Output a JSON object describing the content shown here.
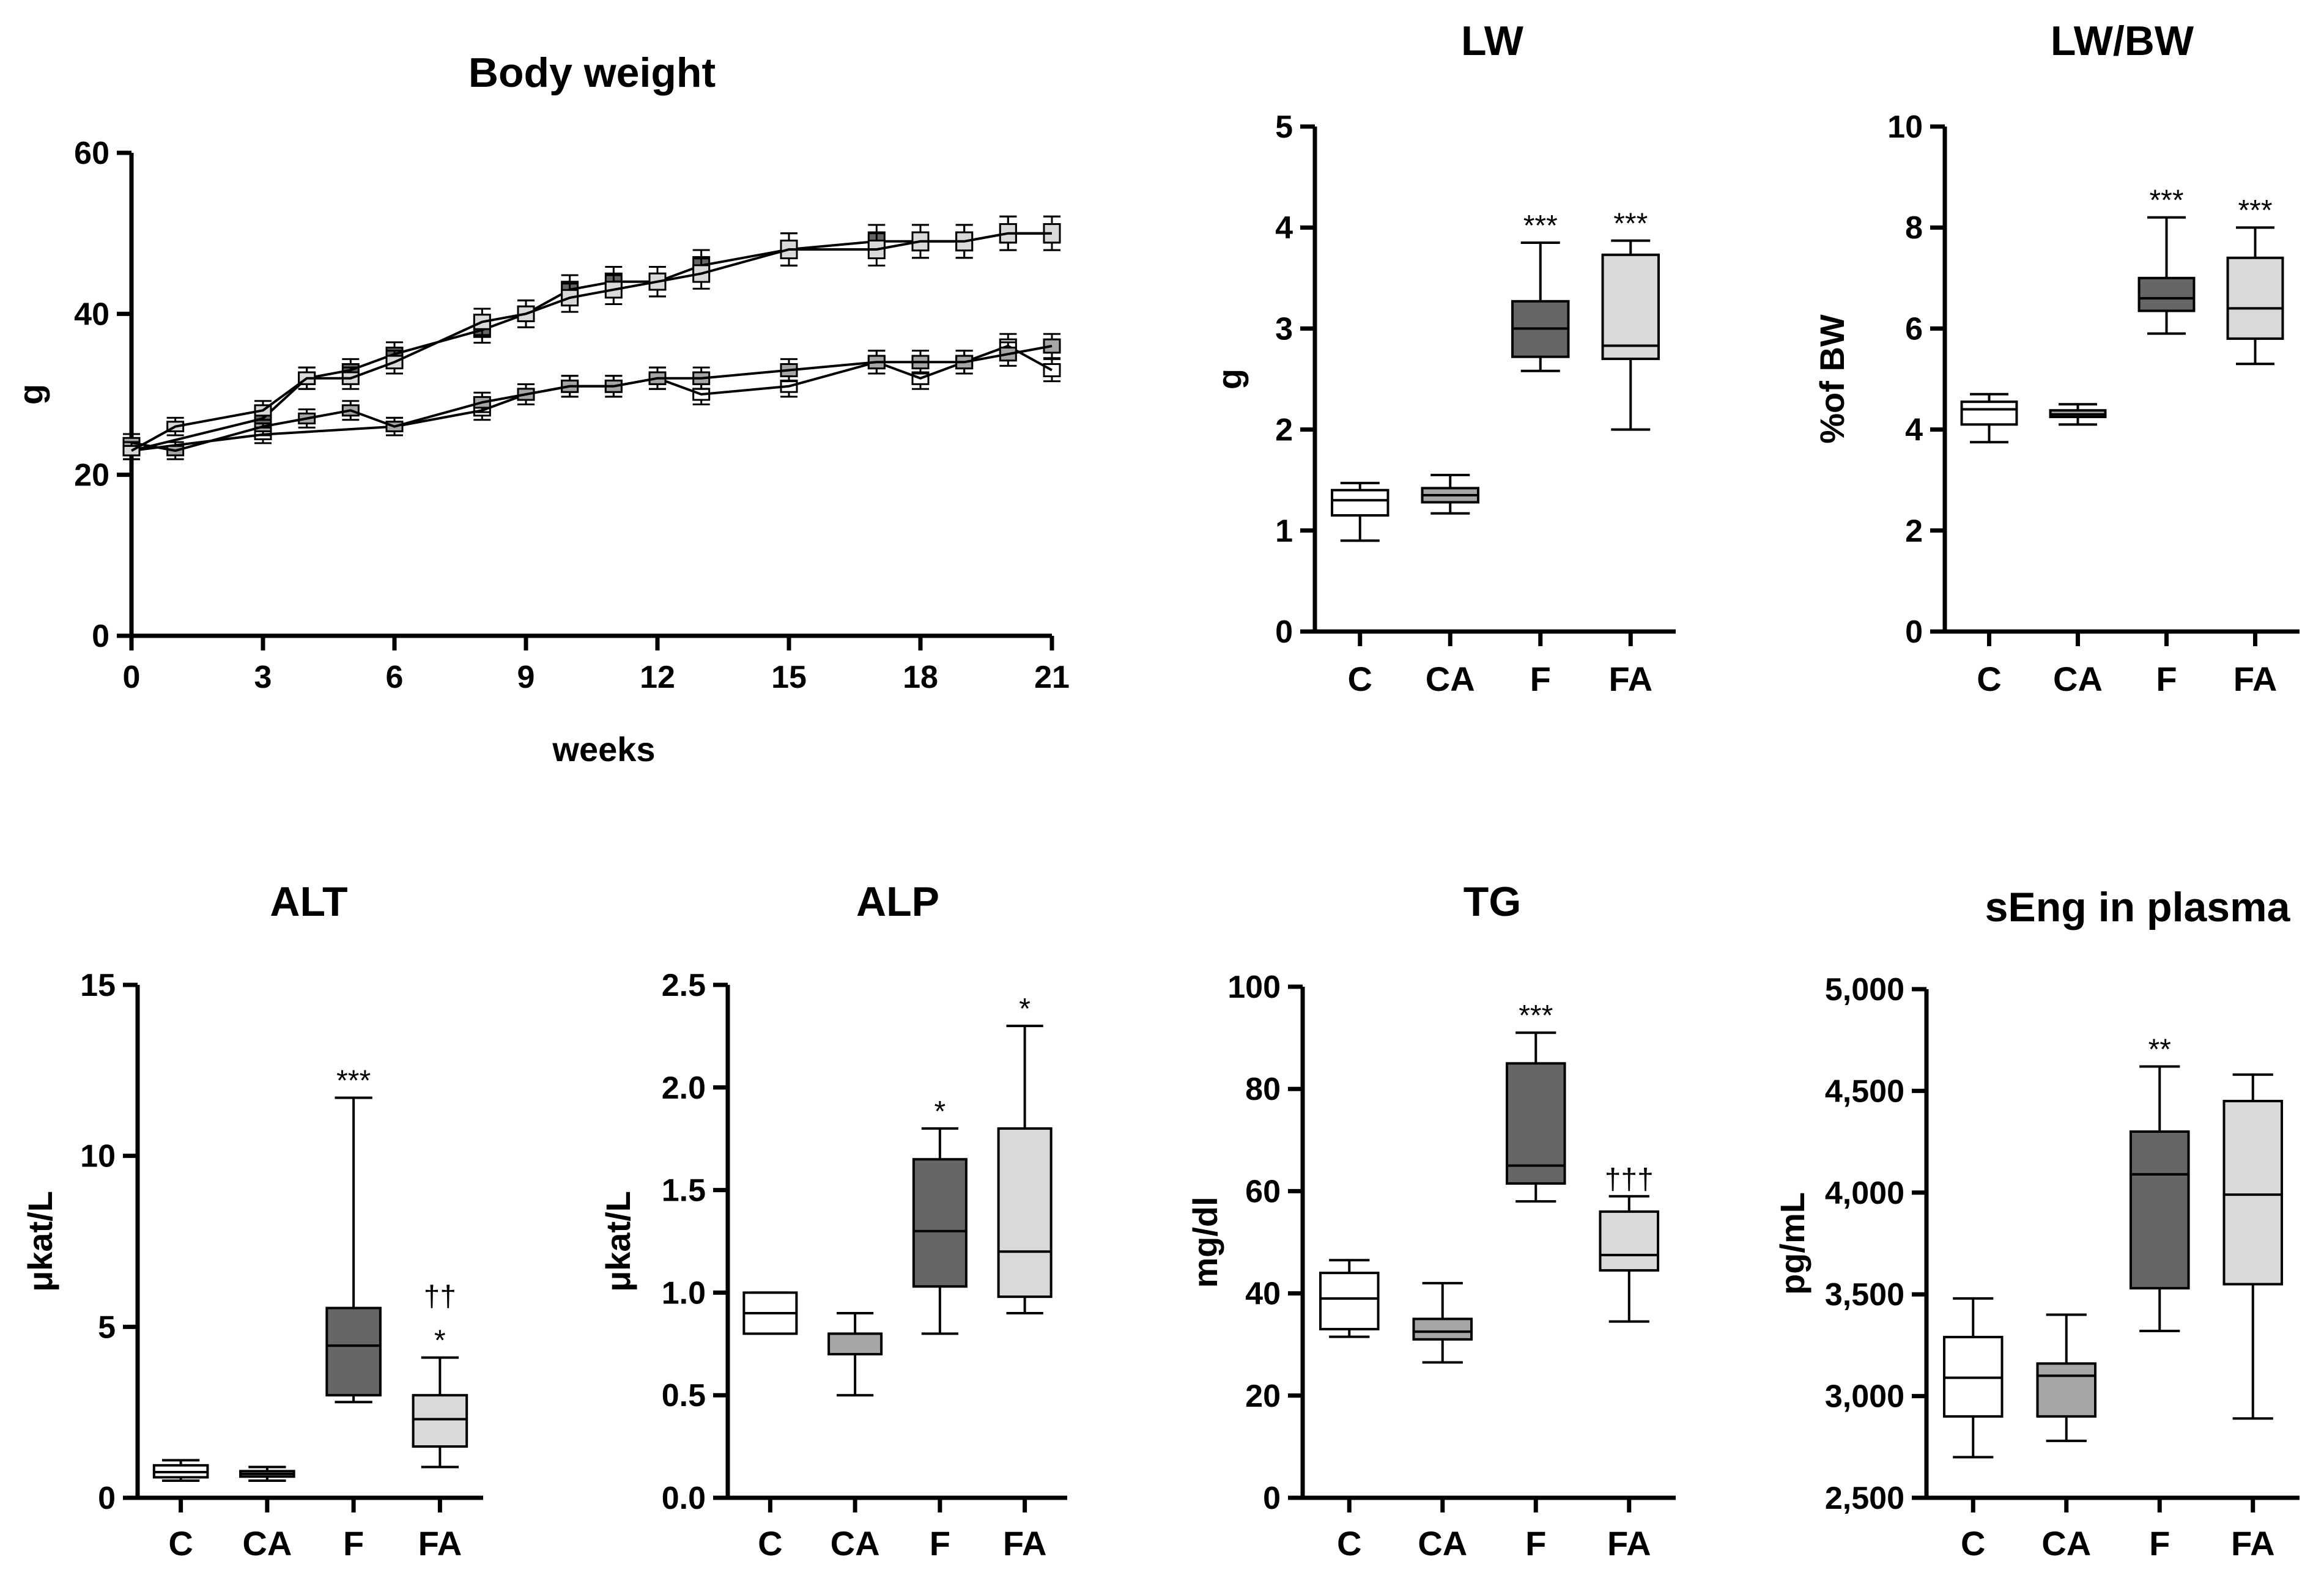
{
  "colors": {
    "C": "#ffffff",
    "CA": "#a6a6a6",
    "F": "#666666",
    "FA": "#d9d9d9",
    "axis": "#000000"
  },
  "chart_data": [
    {
      "id": "body-weight",
      "type": "line",
      "title": "Body weight",
      "xlabel": "weeks",
      "ylabel": "g",
      "xlim": [
        0,
        21
      ],
      "ylim": [
        0,
        60
      ],
      "x_ticks": [
        0,
        3,
        6,
        9,
        12,
        15,
        18,
        21
      ],
      "y_ticks": [
        0,
        20,
        40,
        60
      ],
      "series": [
        {
          "name": "C",
          "x": [
            0,
            3,
            6,
            8,
            9,
            10,
            11,
            12,
            13,
            15,
            17,
            18,
            19,
            20,
            21
          ],
          "values": [
            23,
            25,
            26,
            28,
            30,
            31,
            31,
            32,
            30,
            31,
            34,
            32,
            34,
            36,
            33
          ]
        },
        {
          "name": "CA",
          "x": [
            0,
            1,
            3,
            4,
            5,
            6,
            8,
            9,
            10,
            11,
            12,
            13,
            15,
            17,
            18,
            19,
            20,
            21
          ],
          "values": [
            24,
            23,
            26,
            27,
            28,
            26,
            29,
            30,
            31,
            31,
            32,
            32,
            33,
            34,
            34,
            34,
            35,
            36
          ]
        },
        {
          "name": "F",
          "x": [
            0,
            3,
            4,
            5,
            6,
            8,
            9,
            10,
            11,
            12,
            13,
            15,
            17,
            18,
            19,
            20,
            21
          ],
          "values": [
            23,
            27,
            32,
            33,
            35,
            38,
            40,
            43,
            44,
            44,
            46,
            48,
            49,
            49,
            49,
            50,
            50
          ]
        },
        {
          "name": "FA",
          "x": [
            0,
            1,
            3,
            4,
            5,
            6,
            8,
            9,
            10,
            11,
            12,
            13,
            15,
            17,
            18,
            19,
            20,
            21
          ],
          "values": [
            23,
            26,
            28,
            32,
            32,
            34,
            39,
            40,
            42,
            43,
            44,
            45,
            48,
            48,
            49,
            49,
            50,
            50
          ]
        }
      ]
    },
    {
      "id": "lw",
      "type": "box",
      "title": "LW",
      "ylabel": "g",
      "ylim": [
        0,
        5
      ],
      "y_ticks": [
        0,
        1,
        2,
        3,
        4,
        5
      ],
      "y_tick_labels": [
        "0",
        "1",
        "2",
        "3",
        "4",
        "5"
      ],
      "categories": [
        "C",
        "CA",
        "F",
        "FA"
      ],
      "boxes": [
        {
          "group": "C",
          "min": 0.9,
          "q1": 1.15,
          "median": 1.3,
          "q3": 1.4,
          "max": 1.47,
          "sig": ""
        },
        {
          "group": "CA",
          "min": 1.17,
          "q1": 1.28,
          "median": 1.35,
          "q3": 1.42,
          "max": 1.55,
          "sig": ""
        },
        {
          "group": "F",
          "min": 2.58,
          "q1": 2.72,
          "median": 3.0,
          "q3": 3.27,
          "max": 3.85,
          "sig": "***"
        },
        {
          "group": "FA",
          "min": 2.0,
          "q1": 2.7,
          "median": 2.83,
          "q3": 3.73,
          "max": 3.87,
          "sig": "***"
        }
      ]
    },
    {
      "id": "lw-bw",
      "type": "box",
      "title": "LW/BW",
      "ylabel": "%of BW",
      "ylim": [
        0,
        10
      ],
      "y_ticks": [
        0,
        2,
        4,
        6,
        8,
        10
      ],
      "y_tick_labels": [
        "0",
        "2",
        "4",
        "6",
        "8",
        "10"
      ],
      "categories": [
        "C",
        "CA",
        "F",
        "FA"
      ],
      "boxes": [
        {
          "group": "C",
          "min": 3.75,
          "q1": 4.1,
          "median": 4.4,
          "q3": 4.55,
          "max": 4.7,
          "sig": ""
        },
        {
          "group": "CA",
          "min": 4.1,
          "q1": 4.25,
          "median": 4.3,
          "q3": 4.38,
          "max": 4.5,
          "sig": ""
        },
        {
          "group": "F",
          "min": 5.9,
          "q1": 6.35,
          "median": 6.6,
          "q3": 7.0,
          "max": 8.2,
          "sig": "***"
        },
        {
          "group": "FA",
          "min": 5.3,
          "q1": 5.8,
          "median": 6.4,
          "q3": 7.4,
          "max": 8.0,
          "sig": "***"
        }
      ]
    },
    {
      "id": "alt",
      "type": "box",
      "title": "ALT",
      "ylabel": "μkat/L",
      "ylim": [
        0,
        15
      ],
      "y_ticks": [
        0,
        5,
        10,
        15
      ],
      "y_tick_labels": [
        "0",
        "5",
        "10",
        "15"
      ],
      "categories": [
        "C",
        "CA",
        "F",
        "FA"
      ],
      "boxes": [
        {
          "group": "C",
          "min": 0.5,
          "q1": 0.6,
          "median": 0.75,
          "q3": 0.95,
          "max": 1.1,
          "sig": ""
        },
        {
          "group": "CA",
          "min": 0.5,
          "q1": 0.62,
          "median": 0.7,
          "q3": 0.78,
          "max": 0.9,
          "sig": ""
        },
        {
          "group": "F",
          "min": 2.8,
          "q1": 3.0,
          "median": 4.45,
          "q3": 5.55,
          "max": 11.7,
          "sig": "***"
        },
        {
          "group": "FA",
          "min": 0.9,
          "q1": 1.5,
          "median": 2.3,
          "q3": 3.0,
          "max": 4.1,
          "sig": "*",
          "sig2": "††"
        }
      ]
    },
    {
      "id": "alp",
      "type": "box",
      "title": "ALP",
      "ylabel": "μkat/L",
      "ylim": [
        0,
        2.5
      ],
      "y_ticks": [
        0,
        0.5,
        1.0,
        1.5,
        2.0,
        2.5
      ],
      "y_tick_labels": [
        "0.0",
        "0.5",
        "1.0",
        "1.5",
        "2.0",
        "2.5"
      ],
      "categories": [
        "C",
        "CA",
        "F",
        "FA"
      ],
      "boxes": [
        {
          "group": "C",
          "min": 0.8,
          "q1": 0.8,
          "median": 0.9,
          "q3": 1.0,
          "max": 1.0,
          "sig": ""
        },
        {
          "group": "CA",
          "min": 0.5,
          "q1": 0.7,
          "median": 0.8,
          "q3": 0.8,
          "max": 0.9,
          "sig": ""
        },
        {
          "group": "F",
          "min": 0.8,
          "q1": 1.03,
          "median": 1.3,
          "q3": 1.65,
          "max": 1.8,
          "sig": "*"
        },
        {
          "group": "FA",
          "min": 0.9,
          "q1": 0.98,
          "median": 1.2,
          "q3": 1.8,
          "max": 2.3,
          "sig": "*"
        }
      ]
    },
    {
      "id": "tg",
      "type": "box",
      "title": "TG",
      "ylabel": "mg/dl",
      "ylim": [
        0,
        100
      ],
      "y_ticks": [
        0,
        20,
        40,
        60,
        80,
        100
      ],
      "y_tick_labels": [
        "0",
        "20",
        "40",
        "60",
        "80",
        "100"
      ],
      "categories": [
        "C",
        "CA",
        "F",
        "FA"
      ],
      "boxes": [
        {
          "group": "C",
          "min": 31.5,
          "q1": 33,
          "median": 39,
          "q3": 44,
          "max": 46.5,
          "sig": ""
        },
        {
          "group": "CA",
          "min": 26.5,
          "q1": 31,
          "median": 32.5,
          "q3": 35,
          "max": 42,
          "sig": ""
        },
        {
          "group": "F",
          "min": 58,
          "q1": 61.5,
          "median": 65,
          "q3": 85,
          "max": 91,
          "sig": "***"
        },
        {
          "group": "FA",
          "min": 34.5,
          "q1": 44.5,
          "median": 47.5,
          "q3": 56,
          "max": 59,
          "sig": "",
          "sig2": "†††"
        }
      ]
    },
    {
      "id": "seng",
      "type": "box",
      "title": "sEng in plasma",
      "ylabel": "pg/mL",
      "ylim": [
        2500,
        5000
      ],
      "y_ticks": [
        2500,
        3000,
        3500,
        4000,
        4500,
        5000
      ],
      "y_tick_labels": [
        "2,500",
        "3,000",
        "3,500",
        "4,000",
        "4,500",
        "5,000"
      ],
      "categories": [
        "C",
        "CA",
        "F",
        "FA"
      ],
      "boxes": [
        {
          "group": "C",
          "min": 2700,
          "q1": 2900,
          "median": 3090,
          "q3": 3290,
          "max": 3480,
          "sig": ""
        },
        {
          "group": "CA",
          "min": 2780,
          "q1": 2900,
          "median": 3100,
          "q3": 3160,
          "max": 3400,
          "sig": ""
        },
        {
          "group": "F",
          "min": 3320,
          "q1": 3530,
          "median": 4090,
          "q3": 4300,
          "max": 4620,
          "sig": "**"
        },
        {
          "group": "FA",
          "min": 2890,
          "q1": 3550,
          "median": 3990,
          "q3": 4450,
          "max": 4580,
          "sig": ""
        }
      ]
    }
  ]
}
